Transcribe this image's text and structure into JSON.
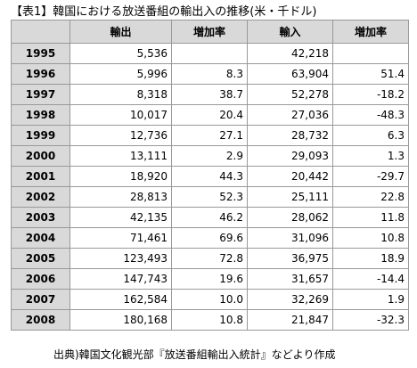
{
  "title": "【表1】韓国における放送番組の輸出入の推移(米・千ドル)",
  "table": {
    "header": [
      null,
      "輸出",
      "増加率",
      "輸入",
      "増加率"
    ],
    "rows": [
      [
        "1995",
        "5,536",
        null,
        "42,218",
        null
      ],
      [
        "1996",
        "5,996",
        "8.3",
        "63,904",
        "51.4"
      ],
      [
        "1997",
        "8,318",
        "38.7",
        "52,278",
        "-18.2"
      ],
      [
        "1998",
        "10,017",
        "20.4",
        "27,036",
        "-48.3"
      ],
      [
        "1999",
        "12,736",
        "27.1",
        "28,732",
        "6.3"
      ],
      [
        "2000",
        "13,111",
        "2.9",
        "29,093",
        "1.3"
      ],
      [
        "2001",
        "18,920",
        "44.3",
        "20,442",
        "-29.7"
      ],
      [
        "2002",
        "28,813",
        "52.3",
        "25,111",
        "22.8"
      ],
      [
        "2003",
        "42,135",
        "46.2",
        "28,062",
        "11.8"
      ],
      [
        "2004",
        "71,461",
        "69.6",
        "31,096",
        "10.8"
      ],
      [
        "2005",
        "123,493",
        "72.8",
        "36,975",
        "18.9"
      ],
      [
        "2006",
        "147,743",
        "19.6",
        "31,657",
        "-14.4"
      ],
      [
        "2007",
        "162,584",
        "10.0",
        "32,269",
        "1.9"
      ],
      [
        "2008",
        "180,168",
        "10.8",
        "21,847",
        "-32.3"
      ]
    ]
  },
  "note": "出典)韓国文化観光部『放送番組輸出入統計』などより作成"
}
